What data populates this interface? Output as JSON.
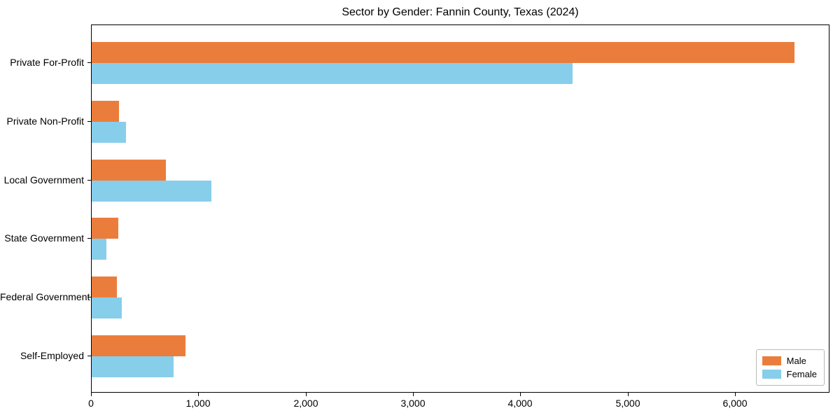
{
  "chart_data": {
    "type": "bar",
    "orientation": "horizontal",
    "title": "Sector by Gender: Fannin County, Texas (2024)",
    "categories": [
      "Private For-Profit",
      "Private Non-Profit",
      "Local Government",
      "State Government",
      "Federal Government",
      "Self-Employed"
    ],
    "series": [
      {
        "name": "Male",
        "color": "#eb7d3c",
        "values": [
          6550,
          255,
          690,
          250,
          235,
          875
        ]
      },
      {
        "name": "Female",
        "color": "#87ceeb",
        "values": [
          4480,
          320,
          1115,
          135,
          280,
          760
        ]
      }
    ],
    "xlabel": "",
    "ylabel": "",
    "xlim": [
      0,
      6880
    ],
    "x_ticks": [
      0,
      1000,
      2000,
      3000,
      4000,
      5000,
      6000
    ],
    "x_tick_labels": [
      "0",
      "1,000",
      "2,000",
      "3,000",
      "4,000",
      "5,000",
      "6,000"
    ],
    "grid": false,
    "legend": {
      "position": "lower right",
      "entries": [
        {
          "label": "Male",
          "color": "#eb7d3c"
        },
        {
          "label": "Female",
          "color": "#87ceeb"
        }
      ]
    }
  }
}
